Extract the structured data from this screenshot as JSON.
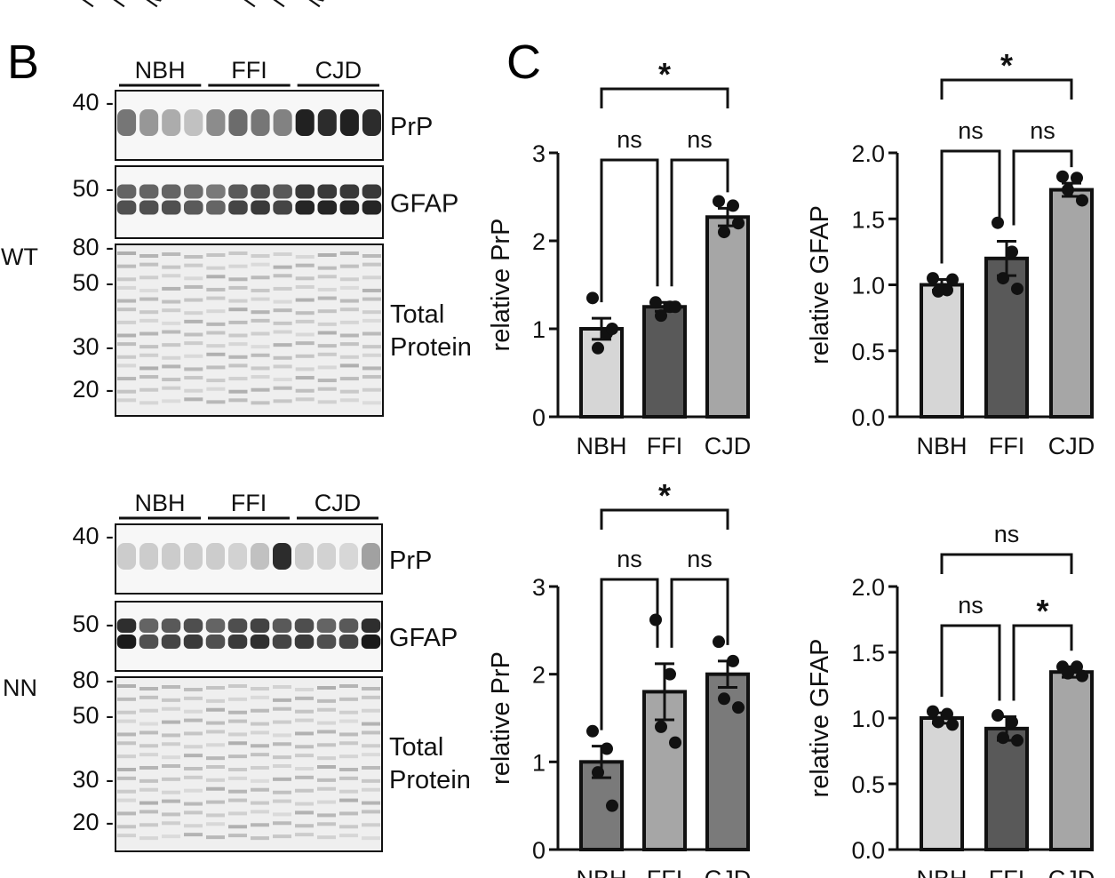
{
  "panels": {
    "b": "B",
    "c": "C"
  },
  "top_fragment": [
    "N",
    "N",
    "M",
    "N",
    "N",
    "M"
  ],
  "blots": [
    {
      "genotype": "WT",
      "groups": [
        "NBH",
        "FFI",
        "CJD"
      ],
      "lanes_per_group": 4,
      "marker_labels": [
        "40 -",
        "50 -",
        "80 -",
        "50 -",
        "30 -",
        "20 -"
      ],
      "strip_labels": [
        "PrP",
        "GFAP",
        "Total",
        "Protein"
      ],
      "prp_lane_intensity": [
        0.55,
        0.4,
        0.3,
        0.2,
        0.45,
        0.6,
        0.55,
        0.5,
        0.95,
        0.9,
        0.95,
        0.9
      ],
      "gfap_lane_intensity": [
        0.7,
        0.7,
        0.7,
        0.65,
        0.6,
        0.75,
        0.8,
        0.75,
        0.9,
        0.9,
        0.9,
        0.9
      ]
    },
    {
      "genotype": "NN",
      "groups": [
        "NBH",
        "FFI",
        "CJD"
      ],
      "lanes_per_group": 4,
      "marker_labels": [
        "40 -",
        "50 -",
        "80 -",
        "50 -",
        "30 -",
        "20 -"
      ],
      "strip_labels": [
        "PrP",
        "GFAP",
        "Total",
        "Protein"
      ],
      "prp_lane_intensity": [
        0.15,
        0.15,
        0.15,
        0.15,
        0.15,
        0.12,
        0.2,
        0.9,
        0.15,
        0.12,
        0.1,
        0.35
      ],
      "gfap_lane_intensity": [
        0.95,
        0.7,
        0.75,
        0.8,
        0.7,
        0.8,
        0.85,
        0.75,
        0.8,
        0.7,
        0.75,
        0.95
      ]
    }
  ],
  "chart_data": [
    {
      "type": "bar",
      "ylabel": "relative PrP",
      "categories": [
        "NBH",
        "FFI",
        "CJD"
      ],
      "values": [
        1.0,
        1.25,
        2.27
      ],
      "sem": [
        0.12,
        0.05,
        0.1
      ],
      "points": [
        [
          1.35,
          0.95,
          0.78,
          1.0
        ],
        [
          1.3,
          1.25,
          1.15,
          1.25
        ],
        [
          2.45,
          2.4,
          2.1,
          2.2
        ]
      ],
      "bar_colors": [
        "#d6d6d6",
        "#595959",
        "#a6a6a6"
      ],
      "ylim": [
        0,
        3
      ],
      "yticks": [
        "0",
        "1",
        "2",
        "3"
      ],
      "comparisons": [
        {
          "from": 0,
          "to": 1,
          "label": "ns"
        },
        {
          "from": 1,
          "to": 2,
          "label": "ns"
        },
        {
          "from": 0,
          "to": 2,
          "label": "*"
        }
      ]
    },
    {
      "type": "bar",
      "ylabel": "relative GFAP",
      "categories": [
        "NBH",
        "FFI",
        "CJD"
      ],
      "values": [
        1.0,
        1.2,
        1.72
      ],
      "sem": [
        0.04,
        0.13,
        0.05
      ],
      "points": [
        [
          1.05,
          0.96,
          0.95,
          1.04
        ],
        [
          1.47,
          1.25,
          1.05,
          0.97
        ],
        [
          1.82,
          1.81,
          1.72,
          1.64
        ]
      ],
      "bar_colors": [
        "#d6d6d6",
        "#595959",
        "#a6a6a6"
      ],
      "ylim": [
        0,
        2
      ],
      "yticks": [
        "0.0",
        "0.5",
        "1.0",
        "1.5",
        "2.0"
      ],
      "comparisons": [
        {
          "from": 0,
          "to": 1,
          "label": "ns"
        },
        {
          "from": 1,
          "to": 2,
          "label": "ns"
        },
        {
          "from": 0,
          "to": 2,
          "label": "*"
        }
      ]
    },
    {
      "type": "bar",
      "ylabel": "relative PrP",
      "categories": [
        "NBH",
        "FFI",
        "CJD"
      ],
      "values": [
        1.0,
        1.8,
        2.0
      ],
      "sem": [
        0.18,
        0.32,
        0.15
      ],
      "points": [
        [
          1.35,
          1.15,
          0.88,
          0.5
        ],
        [
          2.62,
          2.0,
          1.4,
          1.22
        ],
        [
          2.37,
          2.15,
          1.72,
          1.62
        ]
      ],
      "bar_colors": [
        "#7a7a7a",
        "#a6a6a6",
        "#7a7a7a"
      ],
      "ylim": [
        0,
        3
      ],
      "yticks": [
        "0",
        "1",
        "2",
        "3"
      ],
      "comparisons": [
        {
          "from": 0,
          "to": 1,
          "label": "ns"
        },
        {
          "from": 1,
          "to": 2,
          "label": "ns"
        },
        {
          "from": 0,
          "to": 2,
          "label": "*"
        }
      ]
    },
    {
      "type": "bar",
      "ylabel": "relative GFAP",
      "categories": [
        "NBH",
        "FFI",
        "CJD"
      ],
      "values": [
        1.0,
        0.92,
        1.35
      ],
      "sem": [
        0.04,
        0.09,
        0.04
      ],
      "points": [
        [
          1.05,
          1.03,
          0.97,
          0.95
        ],
        [
          1.02,
          0.97,
          0.85,
          0.83
        ],
        [
          1.39,
          1.39,
          1.34,
          1.32
        ]
      ],
      "bar_colors": [
        "#d6d6d6",
        "#595959",
        "#a6a6a6"
      ],
      "ylim": [
        0,
        2
      ],
      "yticks": [
        "0.0",
        "0.5",
        "1.0",
        "1.5",
        "2.0"
      ],
      "comparisons": [
        {
          "from": 0,
          "to": 1,
          "label": "ns"
        },
        {
          "from": 1,
          "to": 2,
          "label": "*"
        },
        {
          "from": 0,
          "to": 2,
          "label": "ns"
        }
      ]
    }
  ]
}
